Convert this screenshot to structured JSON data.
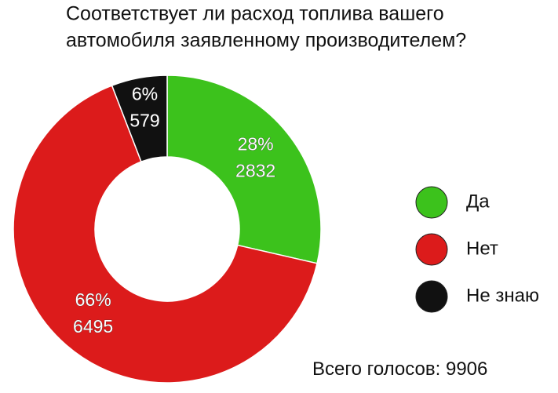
{
  "chart_data": {
    "type": "pie",
    "title_lines": [
      "Соответствует ли расход топлива вашего",
      "автомобиля заявленному производителем?"
    ],
    "categories": [
      "Да",
      "Нет",
      "Не знаю"
    ],
    "values": [
      2832,
      6495,
      579
    ],
    "percents": [
      28,
      66,
      6
    ],
    "percent_labels": [
      "28%",
      "66%",
      "6%"
    ],
    "colors": [
      "#3cc21c",
      "#dc1b1b",
      "#111111"
    ],
    "donut": true,
    "legend": "right",
    "total_prefix": "Всего голосов:",
    "total": 9906
  }
}
